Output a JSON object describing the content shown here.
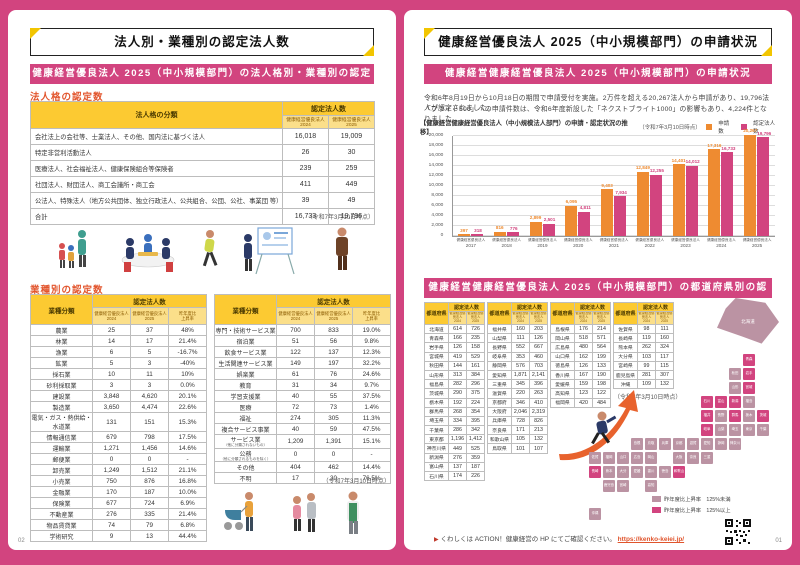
{
  "page_left": {
    "page_number": "02",
    "title": "法人別・業種別の認定法人数",
    "banner": "健康経営優良法人 2025（中小規模部門）の法人格別・業種別の認定数",
    "section1": {
      "label": "法人格の認定数",
      "table": {
        "col_category": "法人格の分類",
        "col_group": "認定法人数",
        "col_2024": "健康経営優良法人 2024",
        "col_2025": "健康経営優良法人 2025",
        "rows": [
          {
            "category": "会社法上の会社等、士業法人、その他、国内法に基づく法人",
            "v2024": "16,018",
            "v2025": "19,009"
          },
          {
            "category": "特定非営利活動法人",
            "v2024": "26",
            "v2025": "30"
          },
          {
            "category": "医療法人、社会福祉法人、健康保険組合等保険者",
            "v2024": "239",
            "v2025": "259"
          },
          {
            "category": "社団法人、財団法人、商工会議所・商工会",
            "v2024": "411",
            "v2025": "449"
          },
          {
            "category": "公法人、特殊法人（地方公共団体、独立行政法人、公共組合、公団、公社、事業団 等）",
            "v2024": "39",
            "v2025": "49"
          },
          {
            "category": "合計",
            "v2024": "16,733",
            "v2025": "19,796"
          }
        ],
        "note": "（令和7年3月10日時点）"
      }
    },
    "section2": {
      "label": "業種別の認定数",
      "col_category": "業種分類",
      "col_group": "認定法人数",
      "col_2024": "健康経営優良法人\n2024",
      "col_2025": "健康経営優良法人\n2025",
      "col_rate": "昨年度比\n上昇率",
      "table_left_rows": [
        {
          "category": "農業",
          "v2024": "25",
          "v2025": "37",
          "rate": "48%"
        },
        {
          "category": "林業",
          "v2024": "14",
          "v2025": "17",
          "rate": "21.4%"
        },
        {
          "category": "漁業",
          "v2024": "6",
          "v2025": "5",
          "rate": "-16.7%"
        },
        {
          "category": "鉱業",
          "v2024": "5",
          "v2025": "3",
          "rate": "-40%"
        },
        {
          "category": "採石業",
          "v2024": "10",
          "v2025": "11",
          "rate": "10%"
        },
        {
          "category": "砂利採取業",
          "v2024": "3",
          "v2025": "3",
          "rate": "0.0%"
        },
        {
          "category": "建設業",
          "v2024": "3,848",
          "v2025": "4,620",
          "rate": "20.1%"
        },
        {
          "category": "製造業",
          "v2024": "3,650",
          "v2025": "4,474",
          "rate": "22.6%"
        },
        {
          "category": "電気・ガス・熱供給・水道業",
          "v2024": "131",
          "v2025": "151",
          "rate": "15.3%"
        },
        {
          "category": "情報通信業",
          "v2024": "679",
          "v2025": "798",
          "rate": "17.5%"
        },
        {
          "category": "運輸業",
          "v2024": "1,271",
          "v2025": "1,456",
          "rate": "14.6%"
        },
        {
          "category": "郵便業",
          "v2024": "0",
          "v2025": "0",
          "rate": "-"
        },
        {
          "category": "卸売業",
          "v2024": "1,249",
          "v2025": "1,512",
          "rate": "21.1%"
        },
        {
          "category": "小売業",
          "v2024": "750",
          "v2025": "876",
          "rate": "16.8%"
        },
        {
          "category": "金融業",
          "v2024": "170",
          "v2025": "187",
          "rate": "10.0%"
        },
        {
          "category": "保険業",
          "v2024": "677",
          "v2025": "724",
          "rate": "6.9%"
        },
        {
          "category": "不動産業",
          "v2024": "276",
          "v2025": "335",
          "rate": "21.4%"
        },
        {
          "category": "物品賃貸業",
          "v2024": "74",
          "v2025": "79",
          "rate": "6.8%"
        },
        {
          "category": "学術研究",
          "v2024": "9",
          "v2025": "13",
          "rate": "44.4%"
        }
      ],
      "table_right_rows": [
        {
          "category": "専門・技術サービス業",
          "v2024": "700",
          "v2025": "833",
          "rate": "19.0%"
        },
        {
          "category": "宿泊業",
          "v2024": "51",
          "v2025": "56",
          "rate": "9.8%"
        },
        {
          "category": "飲食サービス業",
          "v2024": "122",
          "v2025": "137",
          "rate": "12.3%"
        },
        {
          "category": "生活関連サービス業",
          "v2024": "149",
          "v2025": "197",
          "rate": "32.2%"
        },
        {
          "category": "娯楽業",
          "v2024": "61",
          "v2025": "76",
          "rate": "24.6%"
        },
        {
          "category": "教育",
          "v2024": "31",
          "v2025": "34",
          "rate": "9.7%"
        },
        {
          "category": "学習支援業",
          "v2024": "40",
          "v2025": "55",
          "rate": "37.5%"
        },
        {
          "category": "医療",
          "v2024": "72",
          "v2025": "73",
          "rate": "1.4%"
        },
        {
          "category": "福祉",
          "v2024": "274",
          "v2025": "305",
          "rate": "11.3%"
        },
        {
          "category": "複合サービス事業",
          "v2024": "40",
          "v2025": "59",
          "rate": "47.5%"
        },
        {
          "category": "サービス業",
          "sub": "（他に分類されないもの）",
          "v2024": "1,209",
          "v2025": "1,391",
          "rate": "15.1%"
        },
        {
          "category": "公務",
          "sub": "（他に分類されるものを除く）",
          "v2024": "0",
          "v2025": "0",
          "rate": "-"
        },
        {
          "category": "その他",
          "v2024": "404",
          "v2025": "462",
          "rate": "14.4%"
        },
        {
          "category": "不明",
          "v2024": "17",
          "v2025": "30",
          "rate": "76.5%"
        }
      ],
      "note": "（令和7年3月10日時点）"
    },
    "illustrations": [
      "family-walking",
      "meeting-table",
      "jogging-woman",
      "whiteboard-presentation",
      "standing-businessman",
      "parent-with-stroller",
      "couple",
      "apron-worker"
    ]
  },
  "page_right": {
    "page_number": "01",
    "title": "健康経営優良法人 2025（中小規模部門）の申請状況",
    "banner1": "健康経営健康経営優良法人 2025（中小規模部門）の申請状況",
    "intro_line1": "令和6年8月19日から10月18日の期間で申請受付を実施。2万件を超える20,267法人から申請があり、19,796法人が認定されました。",
    "intro_line2": "「ブライト500」への申請件数は、令和6年度新設した「ネクストブライト1000」の影響もあり、4,224件となりました。",
    "chart_note": "（令和7年3月10日時点）",
    "banner2": "健康経営健康経営優良法人 2025（中小規模部門）の都道府県別の認定数",
    "pref_col_pref": "都道府県",
    "pref_col_group": "認定法人数",
    "pref_col_2024": "健康経営優良法人\n2024",
    "pref_col_2025": "健康経営優良法人\n2025",
    "pref_tables": [
      [
        {
          "name": "北海道",
          "v2024": "614",
          "v2025": "726"
        },
        {
          "name": "青森県",
          "v2024": "166",
          "v2025": "235"
        },
        {
          "name": "岩手県",
          "v2024": "126",
          "v2025": "158"
        },
        {
          "name": "宮城県",
          "v2024": "419",
          "v2025": "529"
        },
        {
          "name": "秋田県",
          "v2024": "144",
          "v2025": "161"
        },
        {
          "name": "山形県",
          "v2024": "313",
          "v2025": "384"
        },
        {
          "name": "福島県",
          "v2024": "282",
          "v2025": "296"
        },
        {
          "name": "茨城県",
          "v2024": "290",
          "v2025": "375"
        },
        {
          "name": "栃木県",
          "v2024": "192",
          "v2025": "224"
        },
        {
          "name": "群馬県",
          "v2024": "268",
          "v2025": "354"
        },
        {
          "name": "埼玉県",
          "v2024": "334",
          "v2025": "395"
        },
        {
          "name": "千葉県",
          "v2024": "286",
          "v2025": "342"
        },
        {
          "name": "東京都",
          "v2024": "1,196",
          "v2025": "1,412"
        },
        {
          "name": "神奈川県",
          "v2024": "449",
          "v2025": "525"
        },
        {
          "name": "新潟県",
          "v2024": "276",
          "v2025": "359"
        },
        {
          "name": "富山県",
          "v2024": "137",
          "v2025": "187"
        },
        {
          "name": "石川県",
          "v2024": "174",
          "v2025": "226"
        }
      ],
      [
        {
          "name": "福井県",
          "v2024": "160",
          "v2025": "203"
        },
        {
          "name": "山梨県",
          "v2024": "111",
          "v2025": "126"
        },
        {
          "name": "長野県",
          "v2024": "552",
          "v2025": "667"
        },
        {
          "name": "岐阜県",
          "v2024": "353",
          "v2025": "460"
        },
        {
          "name": "静岡県",
          "v2024": "576",
          "v2025": "703"
        },
        {
          "name": "愛知県",
          "v2024": "1,871",
          "v2025": "2,141"
        },
        {
          "name": "三重県",
          "v2024": "345",
          "v2025": "396"
        },
        {
          "name": "滋賀県",
          "v2024": "220",
          "v2025": "263"
        },
        {
          "name": "京都府",
          "v2024": "346",
          "v2025": "410"
        },
        {
          "name": "大阪府",
          "v2024": "2,046",
          "v2025": "2,319"
        },
        {
          "name": "兵庫県",
          "v2024": "728",
          "v2025": "826"
        },
        {
          "name": "奈良県",
          "v2024": "171",
          "v2025": "213"
        },
        {
          "name": "和歌山県",
          "v2024": "105",
          "v2025": "132"
        },
        {
          "name": "鳥取県",
          "v2024": "101",
          "v2025": "107"
        }
      ],
      [
        {
          "name": "島根県",
          "v2024": "176",
          "v2025": "214"
        },
        {
          "name": "岡山県",
          "v2024": "518",
          "v2025": "571"
        },
        {
          "name": "広島県",
          "v2024": "480",
          "v2025": "564"
        },
        {
          "name": "山口県",
          "v2024": "162",
          "v2025": "199"
        },
        {
          "name": "徳島県",
          "v2024": "126",
          "v2025": "133"
        },
        {
          "name": "香川県",
          "v2024": "167",
          "v2025": "190"
        },
        {
          "name": "愛媛県",
          "v2024": "159",
          "v2025": "198"
        },
        {
          "name": "高知県",
          "v2024": "123",
          "v2025": "122"
        },
        {
          "name": "福岡県",
          "v2024": "420",
          "v2025": "484"
        }
      ],
      [
        {
          "name": "佐賀県",
          "v2024": "98",
          "v2025": "111"
        },
        {
          "name": "長崎県",
          "v2024": "119",
          "v2025": "160"
        },
        {
          "name": "熊本県",
          "v2024": "262",
          "v2025": "324"
        },
        {
          "name": "大分県",
          "v2024": "103",
          "v2025": "117"
        },
        {
          "name": "宮崎県",
          "v2024": "99",
          "v2025": "115"
        },
        {
          "name": "鹿児島県",
          "v2024": "281",
          "v2025": "307"
        },
        {
          "name": "沖縄",
          "v2024": "109",
          "v2025": "132"
        }
      ]
    ],
    "pref_note": "（令和7年3月10日時点）",
    "map_legend": [
      {
        "label": "昨年度比上昇率　125%未満",
        "color": "#bb93a3"
      },
      {
        "label": "昨年度比上昇率　125%以上",
        "color": "#d2447f"
      }
    ],
    "footer_text": "くわしくは ACTION！健康経営の HP にてご確認ください。",
    "footer_link": "https://kenko-keiei.jp/",
    "illustrations": [
      "businessman-jumping-arrow",
      "japan-block-map",
      "qr-code"
    ]
  },
  "chart_data": {
    "type": "bar",
    "title": "【健康経営健康経営優良法人（中小規模法人部門）の申請・認定状況の推移】",
    "category_label": "健康経営優良法人",
    "categories": [
      "2017",
      "2018",
      "2019",
      "2020",
      "2021",
      "2022",
      "2023",
      "2024",
      "2025"
    ],
    "series": [
      {
        "name": "申請数",
        "color": "#ee8b31",
        "values": [
          397,
          816,
          2899,
          6095,
          9403,
          12849,
          14401,
          17316,
          20267
        ]
      },
      {
        "name": "認定法人数",
        "color": "#d2447f",
        "values": [
          318,
          776,
          2501,
          4811,
          7934,
          12255,
          14012,
          16733,
          19796
        ]
      }
    ],
    "ylim": [
      0,
      20000
    ],
    "ytick_step": 2000,
    "grid": true,
    "legend_position": "top-right"
  }
}
